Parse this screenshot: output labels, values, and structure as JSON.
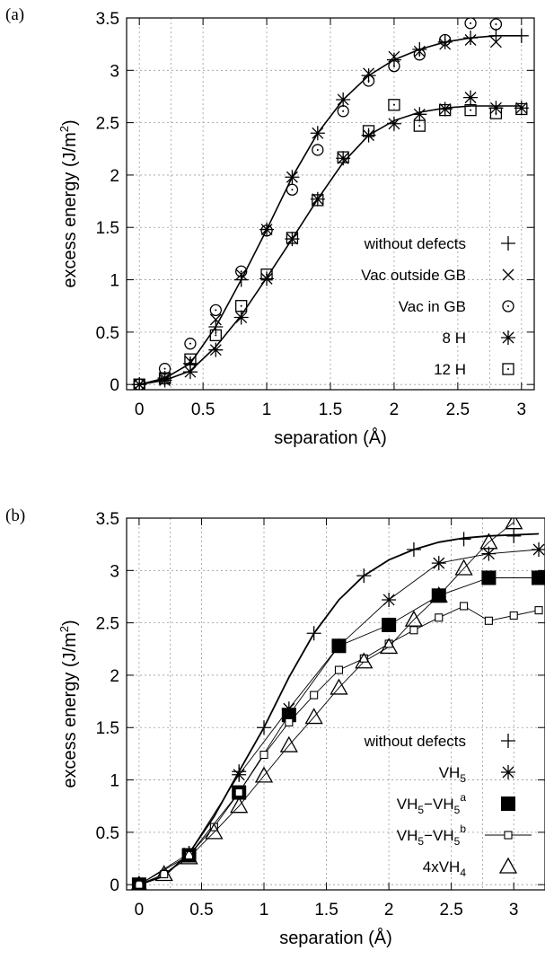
{
  "chart_data": [
    {
      "type": "scatter",
      "panel_label": "(a)",
      "xlabel": "separation (Å)",
      "ylabel": "excess energy (J/m²)",
      "ylabel_main": "excess energy (J/m",
      "ylabel_sup": "2",
      "ylabel_close": ")",
      "xlim": [
        -0.1,
        3.1
      ],
      "ylim": [
        -0.05,
        3.5
      ],
      "xticks": [
        0,
        0.5,
        1,
        1.5,
        2,
        2.5,
        3
      ],
      "xtick_labels": [
        "0",
        "0.5",
        "1",
        "1.5",
        "2",
        "2.5",
        "3"
      ],
      "yticks": [
        0,
        0.5,
        1,
        1.5,
        2,
        2.5,
        3,
        3.5
      ],
      "ytick_labels": [
        "0",
        "0.5",
        "1",
        "1.5",
        "2",
        "2.5",
        "3",
        "3.5"
      ],
      "grid": true,
      "legend_position": "bottom-right",
      "series": [
        {
          "name": "without defects",
          "marker": "plus",
          "x": [
            0,
            0.2,
            0.4,
            0.6,
            0.8,
            1.0,
            1.2,
            1.4,
            1.6,
            1.8,
            2.0,
            2.2,
            2.4,
            2.6,
            2.8,
            3.0
          ],
          "y": [
            0,
            0.06,
            0.2,
            0.55,
            1.0,
            1.48,
            1.98,
            2.4,
            2.72,
            2.95,
            3.1,
            3.2,
            3.27,
            3.31,
            3.33,
            3.33
          ]
        },
        {
          "name": "Vac outside GB",
          "marker": "cross",
          "x": [
            0,
            0.2,
            0.4,
            0.6,
            0.8,
            1.0,
            1.2,
            1.4,
            1.6,
            1.8,
            2.0,
            2.2,
            2.4,
            2.6,
            2.8
          ],
          "y": [
            0,
            0.06,
            0.22,
            0.62,
            1.05,
            1.48,
            1.98,
            2.4,
            2.72,
            2.97,
            3.13,
            3.18,
            3.25,
            3.29,
            3.27
          ]
        },
        {
          "name": "Vac in GB",
          "marker": "circle",
          "x": [
            0,
            0.2,
            0.4,
            0.6,
            0.8,
            1.0,
            1.2,
            1.4,
            1.6,
            1.8,
            2.0,
            2.2,
            2.4,
            2.6,
            2.8
          ],
          "y": [
            0,
            0.15,
            0.39,
            0.71,
            1.08,
            1.47,
            1.86,
            2.24,
            2.61,
            2.9,
            3.04,
            3.15,
            3.29,
            3.45,
            3.44
          ]
        },
        {
          "name": "8 H",
          "marker": "star",
          "x": [
            0,
            0.2,
            0.4,
            0.6,
            0.8,
            1.0,
            1.2,
            1.4,
            1.6,
            1.8,
            2.0,
            2.2,
            2.4,
            2.6,
            2.8,
            3.0
          ],
          "y": [
            0,
            0.04,
            0.12,
            0.33,
            0.64,
            1.01,
            1.39,
            1.77,
            2.16,
            2.38,
            2.49,
            2.58,
            2.63,
            2.74,
            2.64,
            2.64
          ]
        },
        {
          "name": "12 H",
          "marker": "square-dot",
          "x": [
            0,
            0.2,
            0.4,
            0.6,
            0.8,
            1.0,
            1.2,
            1.4,
            1.6,
            1.8,
            2.0,
            2.2,
            2.4,
            2.6,
            2.8,
            3.0
          ],
          "y": [
            0,
            0.06,
            0.24,
            0.47,
            0.75,
            1.05,
            1.4,
            1.76,
            2.17,
            2.42,
            2.67,
            2.47,
            2.62,
            2.62,
            2.59,
            2.63
          ]
        }
      ],
      "fit_curves": [
        {
          "x": [
            0,
            0.2,
            0.4,
            0.6,
            0.8,
            1.0,
            1.2,
            1.4,
            1.6,
            1.8,
            2.0,
            2.2,
            2.4,
            2.6,
            2.8,
            3.0
          ],
          "y": [
            0,
            0.06,
            0.2,
            0.55,
            1.0,
            1.48,
            1.98,
            2.4,
            2.72,
            2.95,
            3.1,
            3.2,
            3.27,
            3.31,
            3.33,
            3.33
          ]
        },
        {
          "x": [
            0,
            0.2,
            0.4,
            0.6,
            0.8,
            1.0,
            1.2,
            1.4,
            1.6,
            1.8,
            2.0,
            2.2,
            2.4,
            2.6,
            2.8,
            3.0
          ],
          "y": [
            0,
            0.04,
            0.13,
            0.36,
            0.66,
            1.02,
            1.39,
            1.77,
            2.12,
            2.38,
            2.52,
            2.6,
            2.64,
            2.66,
            2.66,
            2.66
          ]
        }
      ]
    },
    {
      "type": "line",
      "panel_label": "(b)",
      "xlabel": "separation (Å)",
      "ylabel": "excess energy (J/m²)",
      "ylabel_main": "excess energy (J/m",
      "ylabel_sup": "2",
      "ylabel_close": ")",
      "xlim": [
        -0.1,
        3.25
      ],
      "ylim": [
        -0.05,
        3.5
      ],
      "xticks": [
        0,
        0.5,
        1,
        1.5,
        2,
        2.5,
        3
      ],
      "xtick_labels": [
        "0",
        "0.5",
        "1",
        "1.5",
        "2",
        "2.5",
        "3"
      ],
      "yticks": [
        0,
        0.5,
        1,
        1.5,
        2,
        2.5,
        3,
        3.5
      ],
      "ytick_labels": [
        "0",
        "0.5",
        "1",
        "1.5",
        "2",
        "2.5",
        "3",
        "3.5"
      ],
      "grid": true,
      "legend_position": "bottom-right",
      "series": [
        {
          "name": "without defects",
          "label_main": "without defects",
          "label_sup": "",
          "marker": "plus",
          "line": "fit",
          "x": [
            0,
            0.4,
            0.8,
            1.0,
            1.4,
            1.8,
            2.2,
            2.6,
            3.0
          ],
          "y": [
            0,
            0.3,
            1.08,
            1.5,
            2.4,
            2.95,
            3.2,
            3.3,
            3.33
          ]
        },
        {
          "name": "VH5",
          "label_main": "VH",
          "label_sub": "5",
          "label_mid": "",
          "label_sub2": "",
          "label_sup": "",
          "marker": "star",
          "line": "thin",
          "x": [
            0,
            0.4,
            0.8,
            1.2,
            1.6,
            2.0,
            2.4,
            2.8,
            3.2
          ],
          "y": [
            0,
            0.3,
            1.05,
            1.68,
            2.28,
            2.72,
            3.07,
            3.16,
            3.2
          ]
        },
        {
          "name": "VH5-VH5a",
          "label_main": "VH",
          "label_sub": "5",
          "label_mid": "−VH",
          "label_sub2": "5",
          "label_sup": "a",
          "marker": "filled-square",
          "line": "thin",
          "x": [
            0,
            0.4,
            0.8,
            1.2,
            1.6,
            2.0,
            2.4,
            2.8,
            3.2
          ],
          "y": [
            0,
            0.28,
            0.88,
            1.62,
            2.28,
            2.48,
            2.76,
            2.93,
            2.93
          ]
        },
        {
          "name": "VH5-VH5b",
          "label_main": "VH",
          "label_sub": "5",
          "label_mid": "−VH",
          "label_sub2": "5",
          "label_sup": "b",
          "marker": "small-square",
          "line": "thin",
          "x": [
            0,
            0.2,
            0.4,
            0.6,
            0.8,
            1.0,
            1.2,
            1.4,
            1.6,
            1.8,
            2.0,
            2.2,
            2.4,
            2.6,
            2.8,
            3.0,
            3.2
          ],
          "y": [
            0,
            0.1,
            0.28,
            0.55,
            0.88,
            1.24,
            1.55,
            1.81,
            2.05,
            2.16,
            2.3,
            2.43,
            2.55,
            2.66,
            2.52,
            2.57,
            2.62
          ]
        },
        {
          "name": "4xVH4",
          "label_main": "4xVH",
          "label_sub": "4",
          "label_mid": "",
          "label_sub2": "",
          "label_sup": "",
          "marker": "triangle",
          "line": "thin",
          "x": [
            0,
            0.2,
            0.4,
            0.6,
            0.8,
            1.0,
            1.2,
            1.4,
            1.6,
            1.8,
            2.0,
            2.2,
            2.4,
            2.6,
            2.8,
            3.0
          ],
          "y": [
            0,
            0.1,
            0.26,
            0.5,
            0.75,
            1.04,
            1.33,
            1.6,
            1.88,
            2.13,
            2.27,
            2.53,
            2.76,
            3.02,
            3.27,
            3.46
          ]
        }
      ],
      "fit_curve": {
        "x": [
          0,
          0.2,
          0.4,
          0.6,
          0.8,
          1.0,
          1.2,
          1.4,
          1.6,
          1.8,
          2.0,
          2.2,
          2.4,
          2.6,
          2.8,
          3.0,
          3.2
        ],
        "y": [
          0,
          0.08,
          0.3,
          0.65,
          1.08,
          1.5,
          1.98,
          2.4,
          2.72,
          2.95,
          3.1,
          3.2,
          3.27,
          3.31,
          3.33,
          3.34,
          3.35
        ]
      }
    }
  ]
}
